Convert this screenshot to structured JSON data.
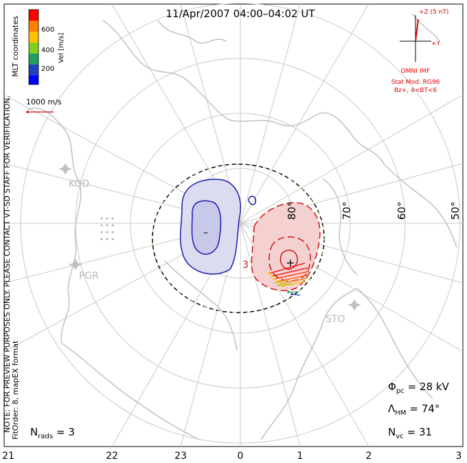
{
  "title": "11/Apr/2007 04:00–04:02 UT",
  "colorbar": {
    "label": "Vel [m/s]",
    "ticks": [
      "600",
      "400",
      "200"
    ],
    "colors": [
      "#ff0000",
      "#ff8000",
      "#ffc000",
      "#80d020",
      "#20a060",
      "#2040c0",
      "#0000ff"
    ]
  },
  "coords_label": "MLT coordinates",
  "scale_vector": "1000 m/s",
  "note": {
    "line1": "NOTE: FOR PREVIEW PURPOSES ONLY. PLEASE CONTACT VT-SD STAFF FOR VERIFICATION.",
    "line2": "FitOrder: 8, mapEX format"
  },
  "imf": {
    "z_label": "+Z (5 nT)",
    "y_label": "+Y",
    "source": "OMNI IMF",
    "model": "Stat Mod: RG96",
    "condition": "Bz+, 4<BT<6"
  },
  "stations": [
    "KOD",
    "PGR",
    "STO"
  ],
  "lat_labels": [
    "80°",
    "70°",
    "60°",
    "50°"
  ],
  "mlt_labels": [
    "21",
    "22",
    "23",
    "0",
    "1",
    "2",
    "3"
  ],
  "stats": {
    "phi_pc_label": "Φ",
    "phi_pc_sub": "pc",
    "phi_pc_value": "= 28 kV",
    "lambda_label": "Λ",
    "lambda_sub": "HM",
    "lambda_value": "= 74°",
    "nvc_label": "N",
    "nvc_sub": "vc",
    "nvc_value": "= 31",
    "nrads_label": "N",
    "nrads_sub": "rads",
    "nrads_value": "= 3"
  },
  "cell_labels": {
    "negative": "–",
    "positive": "+"
  },
  "colors": {
    "negative_cell": "#1a1ab0",
    "negative_fill": "#dcdcf0",
    "positive_cell": "#c81414",
    "positive_fill": "#f5d0d0",
    "imf": "#e00000",
    "map": "#c0c0c0",
    "grid": "#c8c8c8"
  }
}
